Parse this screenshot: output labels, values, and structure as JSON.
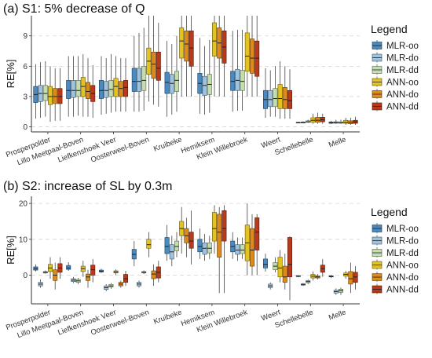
{
  "figure": {
    "legend_title": "Legend",
    "series_colors": {
      "MLR-oo": "#4a8ac0",
      "MLR-do": "#9dc3de",
      "MLR-dd": "#c4dcae",
      "ANN-oo": "#e3c322",
      "ANN-do": "#dc8a1c",
      "ANN-dd": "#b83a1b"
    }
  },
  "chart_data": [
    {
      "type": "box",
      "title": "(a) S1: 5% decrease of Q",
      "ylabel": "RE[%]",
      "ylim": [
        -0.5,
        11
      ],
      "yticks": [
        0,
        3,
        6,
        9
      ],
      "grid": "horizontal dashed",
      "legend_position": "right",
      "categories": [
        "Prosperpolder",
        "Lillo Meetpaal-Boven",
        "Liefkenshoek Veer",
        "Oosterweel-Boven",
        "Kruibeke",
        "Hemiksem",
        "Klein Willebroek",
        "Weert",
        "Schellebelle",
        "Melle"
      ],
      "series": [
        {
          "name": "MLR-oo",
          "boxes": [
            [
              0.8,
              2.4,
              3.2,
              4.0,
              6.2
            ],
            [
              1.0,
              2.8,
              3.6,
              4.6,
              7.0
            ],
            [
              1.2,
              2.8,
              3.6,
              4.6,
              7.0
            ],
            [
              1.5,
              3.5,
              4.5,
              5.8,
              9.0
            ],
            [
              1.0,
              3.3,
              4.4,
              5.4,
              8.5
            ],
            [
              1.3,
              3.3,
              4.3,
              5.3,
              8.8
            ],
            [
              1.5,
              3.6,
              4.5,
              5.5,
              9.5
            ],
            [
              0.9,
              1.8,
              2.7,
              3.6,
              5.8
            ],
            [
              0.35,
              0.38,
              0.4,
              0.45,
              0.5
            ],
            [
              0.3,
              0.35,
              0.4,
              0.48,
              0.6
            ]
          ]
        },
        {
          "name": "MLR-do",
          "boxes": [
            [
              0.9,
              2.5,
              3.3,
              4.1,
              6.4
            ],
            [
              1.0,
              2.9,
              3.6,
              4.6,
              7.0
            ],
            [
              1.3,
              2.9,
              3.6,
              4.5,
              6.8
            ],
            [
              1.5,
              3.5,
              4.5,
              5.8,
              9.3
            ],
            [
              1.2,
              3.3,
              4.3,
              5.2,
              8.2
            ],
            [
              1.2,
              3.1,
              4.1,
              5.0,
              8.0
            ],
            [
              1.6,
              3.6,
              4.6,
              5.7,
              9.6
            ],
            [
              1.0,
              2.0,
              2.7,
              3.6,
              5.6
            ],
            [
              0.35,
              0.38,
              0.42,
              0.48,
              0.55
            ],
            [
              0.3,
              0.36,
              0.42,
              0.5,
              0.7
            ]
          ]
        },
        {
          "name": "MLR-dd",
          "boxes": [
            [
              1.0,
              2.6,
              3.3,
              4.1,
              6.5
            ],
            [
              1.1,
              3.0,
              3.6,
              4.6,
              7.0
            ],
            [
              1.4,
              3.0,
              3.7,
              4.6,
              7.2
            ],
            [
              1.6,
              3.6,
              4.6,
              6.0,
              9.8
            ],
            [
              1.5,
              3.5,
              4.6,
              5.5,
              9.0
            ],
            [
              1.4,
              3.2,
              4.2,
              5.2,
              8.6
            ],
            [
              1.6,
              3.6,
              4.5,
              5.6,
              9.6
            ],
            [
              1.0,
              2.0,
              2.8,
              3.8,
              6.0
            ],
            [
              0.4,
              0.45,
              0.5,
              0.6,
              0.7
            ],
            [
              0.3,
              0.36,
              0.4,
              0.5,
              0.7
            ]
          ]
        },
        {
          "name": "ANN-oo",
          "boxes": [
            [
              0.5,
              2.2,
              3.0,
              4.0,
              6.0
            ],
            [
              1.0,
              3.0,
              4.0,
              4.9,
              7.2
            ],
            [
              1.5,
              3.0,
              4.0,
              4.8,
              7.0
            ],
            [
              2.5,
              5.2,
              6.5,
              7.8,
              11.0
            ],
            [
              3.0,
              6.8,
              8.5,
              9.8,
              11.0
            ],
            [
              3.0,
              7.0,
              8.5,
              10.3,
              11.0
            ],
            [
              3.0,
              5.5,
              7.0,
              9.3,
              11.0
            ],
            [
              0.8,
              1.8,
              2.8,
              4.2,
              6.5
            ],
            [
              0.3,
              0.45,
              0.65,
              0.9,
              1.3
            ],
            [
              0.2,
              0.35,
              0.45,
              0.65,
              0.9
            ]
          ]
        },
        {
          "name": "ANN-do",
          "boxes": [
            [
              0.6,
              2.3,
              3.0,
              3.8,
              5.8
            ],
            [
              1.0,
              2.8,
              3.5,
              4.4,
              6.8
            ],
            [
              1.5,
              3.0,
              3.8,
              4.5,
              6.8
            ],
            [
              2.2,
              4.8,
              6.2,
              7.4,
              11.0
            ],
            [
              3.0,
              6.5,
              8.2,
              9.5,
              11.0
            ],
            [
              3.0,
              6.8,
              8.3,
              9.8,
              11.0
            ],
            [
              3.0,
              5.3,
              6.8,
              8.7,
              11.0
            ],
            [
              0.8,
              1.8,
              2.7,
              3.9,
              6.0
            ],
            [
              0.3,
              0.45,
              0.65,
              0.95,
              1.4
            ],
            [
              0.2,
              0.3,
              0.45,
              0.6,
              0.9
            ]
          ]
        },
        {
          "name": "ANN-dd",
          "boxes": [
            [
              0.6,
              2.3,
              3.0,
              3.8,
              5.8
            ],
            [
              0.9,
              2.5,
              3.3,
              4.1,
              6.1
            ],
            [
              1.5,
              3.0,
              3.9,
              4.6,
              6.8
            ],
            [
              2.0,
              4.6,
              5.8,
              7.4,
              10.3
            ],
            [
              3.0,
              6.0,
              7.8,
              9.5,
              11.0
            ],
            [
              3.0,
              6.3,
              7.9,
              9.5,
              11.0
            ],
            [
              3.0,
              5.0,
              6.8,
              8.5,
              11.0
            ],
            [
              0.8,
              1.8,
              2.6,
              3.6,
              5.7
            ],
            [
              0.3,
              0.5,
              0.7,
              0.95,
              1.3
            ],
            [
              0.2,
              0.35,
              0.5,
              0.65,
              1.0
            ]
          ]
        }
      ]
    },
    {
      "type": "box",
      "title": "(b) S2: increase of SL by 0.3m",
      "ylabel": "RE[%]",
      "ylim": [
        -8,
        22
      ],
      "yticks": [
        0,
        10,
        20
      ],
      "grid": "horizontal dashed",
      "legend_position": "right",
      "categories": [
        "Prosperpolder",
        "Lillo Meetpaal-Boven",
        "Liefkenshoek Veer",
        "Oosterweel-Boven",
        "Kruibeke",
        "Hemiksem",
        "Klein Willebroek",
        "Weert",
        "Schellebelle",
        "Melle"
      ],
      "series": [
        {
          "name": "MLR-oo",
          "boxes": [
            [
              1.0,
              1.4,
              1.8,
              2.3,
              3.0
            ],
            [
              1.2,
              1.6,
              2.0,
              2.7,
              3.6
            ],
            [
              0.6,
              0.9,
              1.1,
              1.4,
              1.8
            ],
            [
              2.5,
              4.5,
              5.8,
              7.2,
              9.5
            ],
            [
              4.0,
              6.0,
              8.0,
              10.5,
              14.0
            ],
            [
              4.5,
              6.5,
              8.0,
              10.0,
              13.0
            ],
            [
              4.5,
              6.5,
              8.0,
              9.5,
              12.0
            ],
            [
              1.0,
              2.0,
              3.0,
              4.5,
              6.0
            ],
            [
              -0.6,
              -0.4,
              -0.3,
              -0.15,
              0.0
            ],
            [
              -0.8,
              -0.5,
              -0.35,
              -0.2,
              0.0
            ]
          ]
        },
        {
          "name": "MLR-do",
          "boxes": [
            [
              -3.5,
              -3.0,
              -2.5,
              -2.0,
              -1.2
            ],
            [
              -2.2,
              -1.8,
              -1.4,
              -1.0,
              -0.5
            ],
            [
              -4.5,
              -4.0,
              -3.5,
              -3.0,
              -2.5
            ],
            [
              -3.5,
              -3.0,
              -2.5,
              -2.0,
              -1.5
            ],
            [
              2.5,
              4.5,
              6.5,
              8.5,
              11.0
            ],
            [
              4.0,
              5.8,
              7.5,
              9.0,
              11.5
            ],
            [
              4.0,
              5.8,
              7.0,
              8.5,
              10.5
            ],
            [
              -4.0,
              -3.5,
              -3.0,
              -2.5,
              -2.0
            ],
            [
              -3.0,
              -2.8,
              -2.6,
              -2.4,
              -2.2
            ],
            [
              -5.5,
              -5.0,
              -4.6,
              -4.2,
              -3.7
            ]
          ]
        },
        {
          "name": "MLR-dd",
          "boxes": [
            [
              0.4,
              0.6,
              0.8,
              1.0,
              1.3
            ],
            [
              -2.5,
              -2.0,
              -1.6,
              -1.2,
              -0.8
            ],
            [
              -3.8,
              -3.3,
              -3.0,
              -2.6,
              -2.2
            ],
            [
              0.3,
              0.6,
              0.8,
              1.0,
              1.3
            ],
            [
              5.0,
              6.8,
              8.0,
              9.5,
              12.0
            ],
            [
              4.5,
              6.2,
              7.5,
              9.0,
              11.0
            ],
            [
              4.5,
              6.0,
              7.0,
              8.5,
              10.5
            ],
            [
              0.8,
              1.5,
              2.5,
              3.5,
              5.0
            ],
            [
              -2.5,
              -2.1,
              -1.8,
              -1.5,
              -1.2
            ],
            [
              -5.5,
              -4.8,
              -4.3,
              -3.9,
              -3.5
            ]
          ]
        },
        {
          "name": "ANN-oo",
          "boxes": [
            [
              -1.0,
              1.0,
              2.0,
              3.0,
              5.0
            ],
            [
              -0.5,
              1.0,
              1.8,
              2.5,
              4.0
            ],
            [
              0.0,
              0.6,
              0.9,
              1.2,
              1.6
            ],
            [
              5.0,
              7.5,
              8.5,
              10.0,
              12.0
            ],
            [
              6.0,
              11.0,
              13.0,
              15.0,
              19.0
            ],
            [
              6.0,
              9.5,
              13.0,
              17.5,
              19.5
            ],
            [
              0.0,
              4.0,
              9.0,
              14.0,
              20.0
            ],
            [
              -2.0,
              -0.5,
              2.0,
              5.0,
              7.0
            ],
            [
              -1.5,
              -0.8,
              -0.3,
              0.2,
              1.0
            ],
            [
              -1.0,
              -0.3,
              0.2,
              0.6,
              1.2
            ]
          ]
        },
        {
          "name": "ANN-do",
          "boxes": [
            [
              -4.0,
              -1.5,
              0.0,
              1.5,
              3.5
            ],
            [
              -3.5,
              -1.5,
              -0.5,
              0.3,
              1.5
            ],
            [
              -3.5,
              -3.0,
              -2.5,
              -2.0,
              -1.5
            ],
            [
              -3.0,
              -1.0,
              0.3,
              1.2,
              3.0
            ],
            [
              5.0,
              9.0,
              11.0,
              13.0,
              16.0
            ],
            [
              -5.0,
              5.0,
              12.0,
              17.0,
              19.0
            ],
            [
              0.0,
              2.5,
              7.0,
              13.0,
              17.0
            ],
            [
              -4.0,
              -2.0,
              -0.5,
              2.5,
              6.0
            ],
            [
              -1.2,
              -0.8,
              -0.5,
              -0.2,
              0.3
            ],
            [
              -5.0,
              -2.5,
              -1.0,
              1.0,
              3.5
            ]
          ]
        },
        {
          "name": "ANN-dd",
          "boxes": [
            [
              -1.0,
              0.8,
              2.0,
              3.2,
              5.0
            ],
            [
              -2.0,
              0.0,
              1.5,
              2.8,
              4.5
            ],
            [
              -3.0,
              -2.0,
              -1.0,
              0.2,
              1.2
            ],
            [
              -2.0,
              -0.8,
              0.8,
              2.3,
              4.0
            ],
            [
              3.0,
              7.5,
              9.5,
              12.0,
              18.0
            ],
            [
              -5.0,
              9.5,
              13.0,
              18.0,
              19.5
            ],
            [
              0.0,
              7.0,
              12.0,
              16.0,
              17.0
            ],
            [
              -7.0,
              -0.5,
              3.0,
              10.5,
              10.8
            ],
            [
              -0.5,
              0.8,
              1.8,
              2.8,
              4.5
            ],
            [
              -4.0,
              -2.0,
              -0.5,
              0.8,
              2.5
            ]
          ]
        }
      ]
    }
  ]
}
